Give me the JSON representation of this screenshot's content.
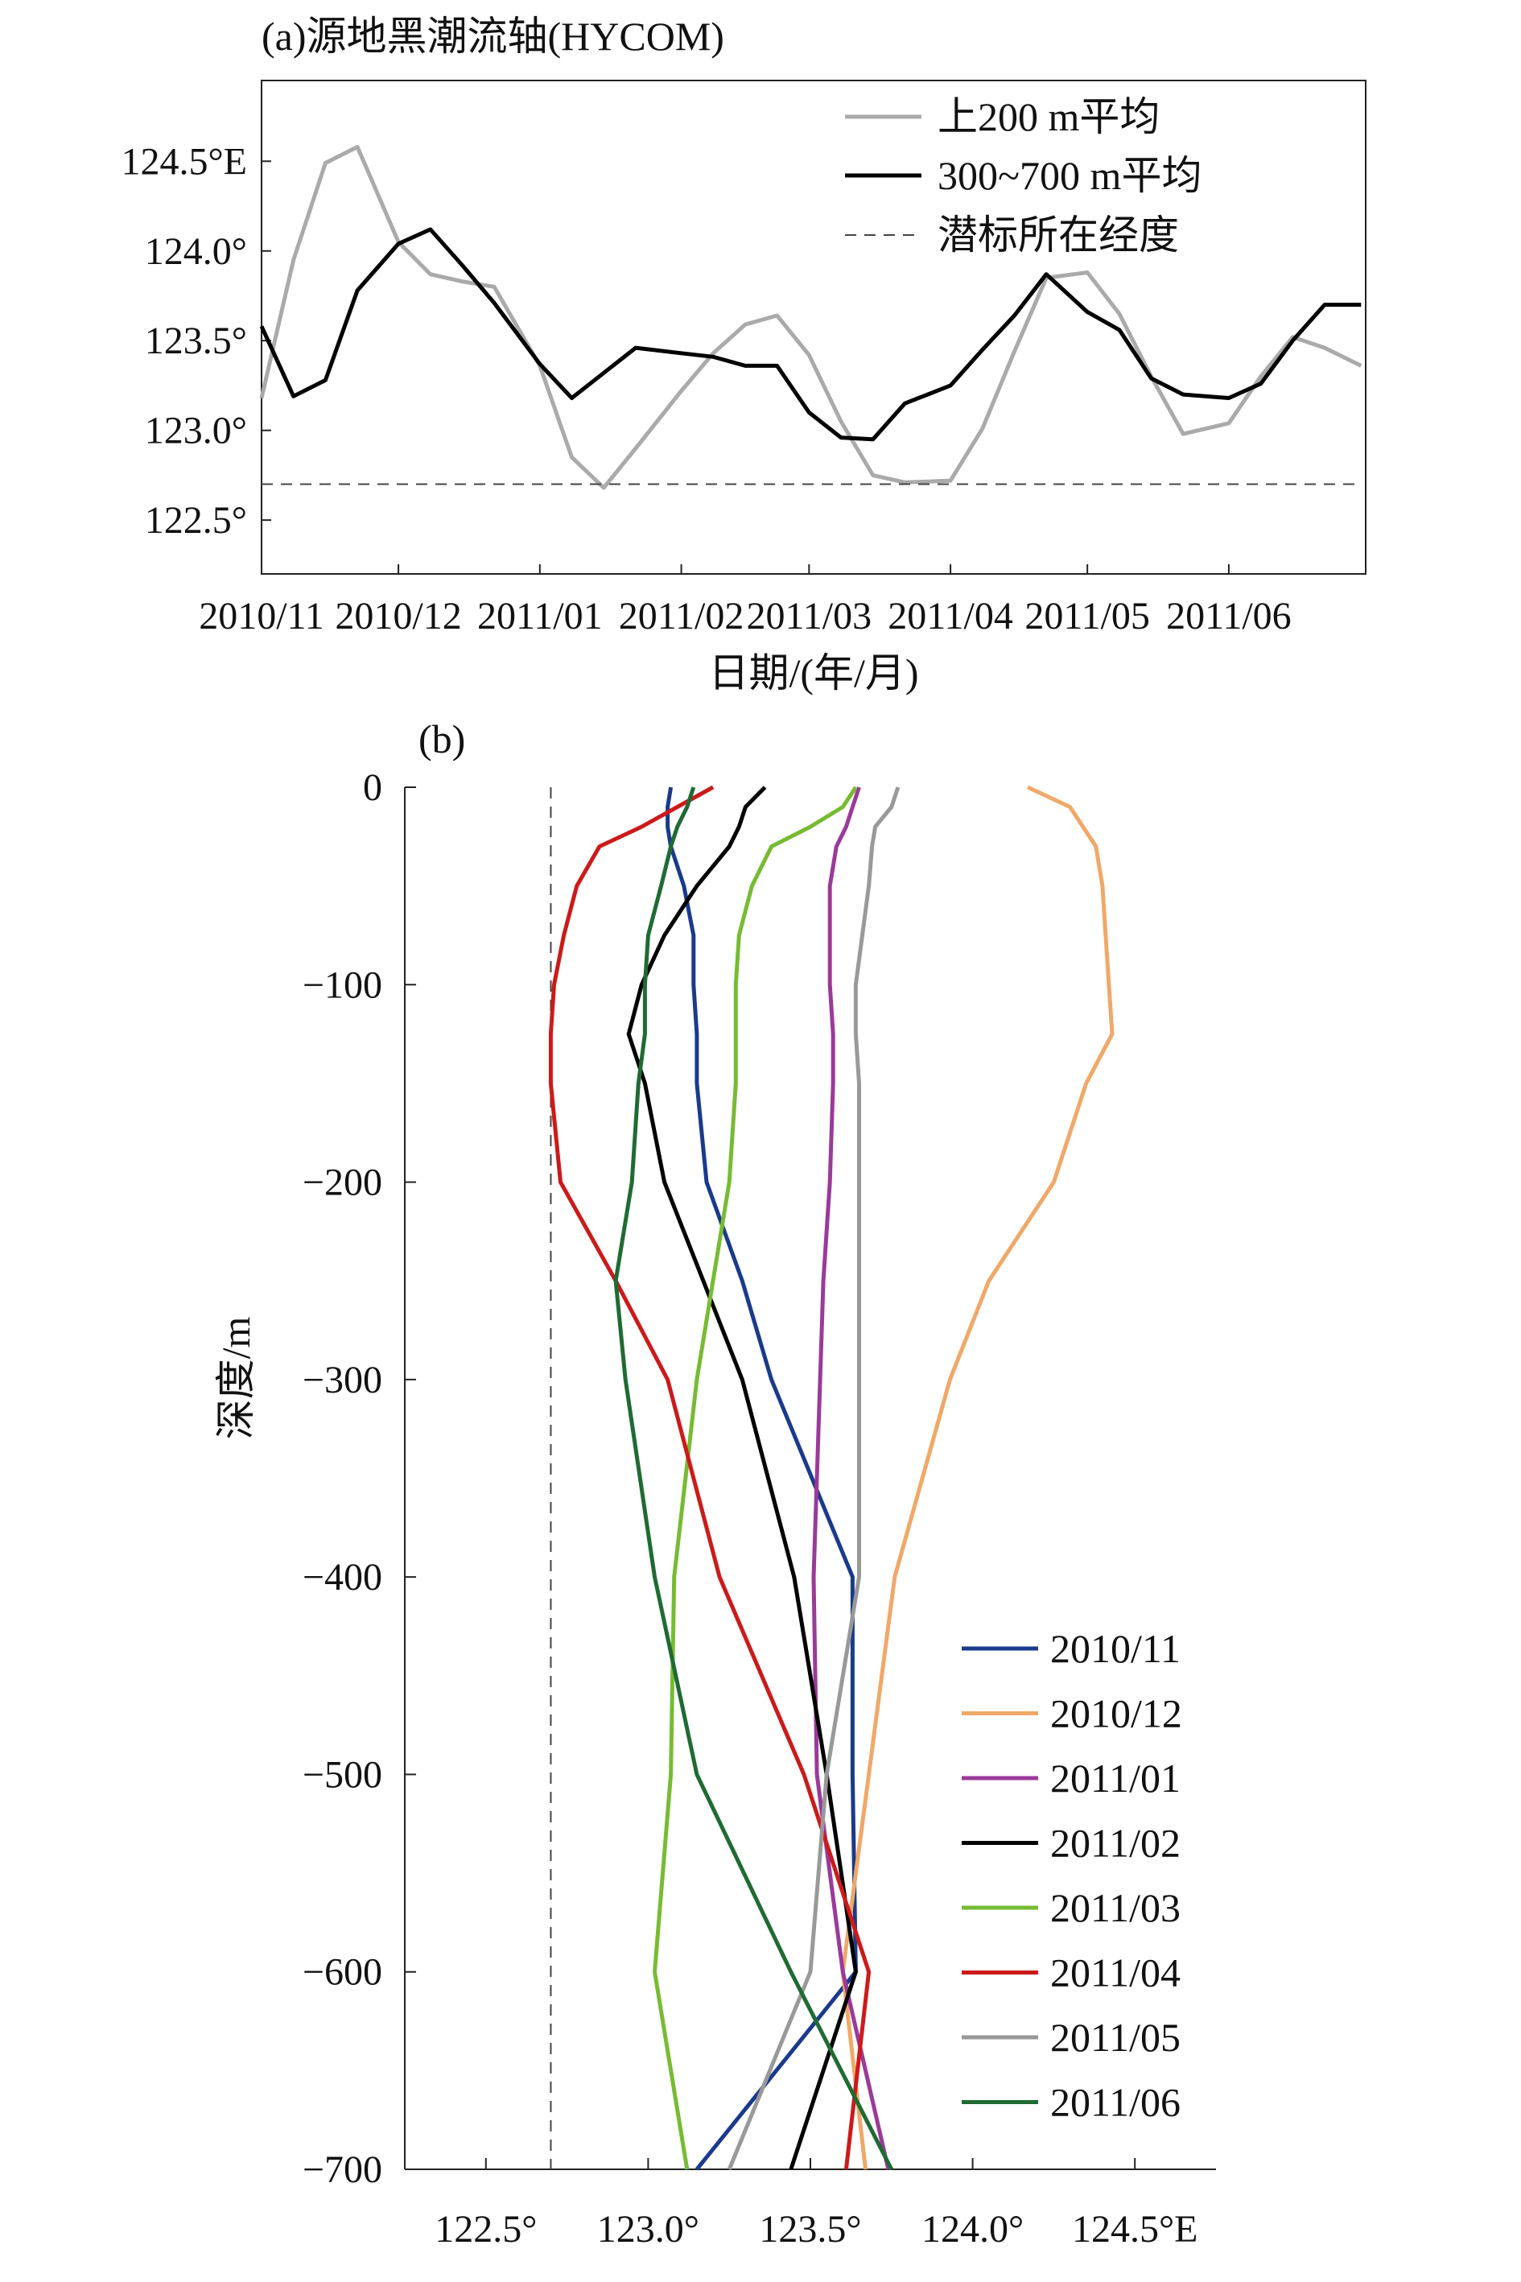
{
  "figure": {
    "panel_a_title": "(a)源地黑潮流轴(HYCOM)",
    "panel_b_title": "(b)"
  },
  "chart_data": [
    {
      "type": "line",
      "title": "(a)源地黑潮流轴(HYCOM)",
      "xlabel": "日期/(年/月)",
      "ylabel": "",
      "ylim": [
        122.2,
        124.95
      ],
      "x_ticks": [
        "2010/11",
        "2010/12",
        "2011/01",
        "2011/02",
        "2011/03",
        "2011/04",
        "2011/05",
        "2011/06"
      ],
      "y_ticks": [
        {
          "value": 124.5,
          "label": "124.5°E"
        },
        {
          "value": 124.0,
          "label": "124.0°"
        },
        {
          "value": 123.5,
          "label": "123.5°"
        },
        {
          "value": 123.0,
          "label": "123.0°"
        },
        {
          "value": 122.5,
          "label": "122.5°"
        }
      ],
      "grid": false,
      "legend_position": "top-right",
      "x": [
        "2010/11/01",
        "2010/11/08",
        "2010/11/15",
        "2010/11/22",
        "2010/12/01",
        "2010/12/08",
        "2010/12/15",
        "2010/12/22",
        "2011/01/01",
        "2011/01/08",
        "2011/01/15",
        "2011/01/22",
        "2011/02/01",
        "2011/02/08",
        "2011/02/15",
        "2011/02/22",
        "2011/03/01",
        "2011/03/08",
        "2011/03/15",
        "2011/03/22",
        "2011/04/01",
        "2011/04/08",
        "2011/04/15",
        "2011/04/22",
        "2011/05/01",
        "2011/05/08",
        "2011/05/15",
        "2011/05/22",
        "2011/06/01",
        "2011/06/08",
        "2011/06/15",
        "2011/06/22",
        "2011/06/30"
      ],
      "series": [
        {
          "name": "上200 m平均",
          "color": "#aaaaaa",
          "style": "solid",
          "values": [
            123.18,
            123.95,
            124.49,
            124.58,
            124.05,
            123.87,
            123.83,
            123.8,
            123.36,
            122.85,
            122.68,
            122.9,
            123.22,
            123.43,
            123.59,
            123.64,
            123.42,
            123.05,
            122.75,
            122.71,
            122.72,
            123.01,
            123.44,
            123.85,
            123.88,
            123.65,
            123.3,
            122.98,
            123.04,
            123.3,
            123.52,
            123.46,
            123.36
          ]
        },
        {
          "name": "300~700 m平均",
          "color": "#000000",
          "style": "solid",
          "values": [
            123.58,
            123.19,
            123.28,
            123.78,
            124.04,
            124.12,
            123.92,
            123.71,
            123.37,
            123.18,
            123.32,
            123.46,
            123.43,
            123.41,
            123.36,
            123.36,
            123.1,
            122.96,
            122.95,
            123.15,
            123.25,
            123.45,
            123.64,
            123.87,
            123.66,
            123.56,
            123.29,
            123.2,
            123.18,
            123.26,
            123.5,
            123.7,
            123.7
          ]
        },
        {
          "name": "潜标所在经度",
          "color": "#444444",
          "style": "dashed",
          "values": [
            122.7,
            122.7,
            122.7,
            122.7,
            122.7,
            122.7,
            122.7,
            122.7,
            122.7,
            122.7,
            122.7,
            122.7,
            122.7,
            122.7,
            122.7,
            122.7,
            122.7,
            122.7,
            122.7,
            122.7,
            122.7,
            122.7,
            122.7,
            122.7,
            122.7,
            122.7,
            122.7,
            122.7,
            122.7,
            122.7,
            122.7,
            122.7,
            122.7
          ]
        }
      ]
    },
    {
      "type": "line",
      "title": "(b)",
      "xlabel": "",
      "ylabel": "深度/m",
      "xlim": [
        122.25,
        124.75
      ],
      "ylim": [
        -700,
        0
      ],
      "x_ticks": [
        {
          "value": 122.5,
          "label": "122.5°"
        },
        {
          "value": 123.0,
          "label": "123.0°"
        },
        {
          "value": 123.5,
          "label": "123.5°"
        },
        {
          "value": 124.0,
          "label": "124.0°"
        },
        {
          "value": 124.5,
          "label": "124.5°E"
        }
      ],
      "y_ticks": [
        {
          "value": 0,
          "label": "0"
        },
        {
          "value": -100,
          "label": "−100"
        },
        {
          "value": -200,
          "label": "−200"
        },
        {
          "value": -300,
          "label": "−300"
        },
        {
          "value": -400,
          "label": "−400"
        },
        {
          "value": -500,
          "label": "−500"
        },
        {
          "value": -600,
          "label": "−600"
        },
        {
          "value": -700,
          "label": "−700"
        }
      ],
      "reference_longitude": 122.7,
      "grid": false,
      "legend_position": "bottom-right",
      "depth": [
        0,
        -10,
        -20,
        -30,
        -50,
        -75,
        -100,
        -125,
        -150,
        -200,
        -250,
        -300,
        -400,
        -500,
        -600,
        -700
      ],
      "series": [
        {
          "name": "2010/11",
          "color": "#1a3a8c",
          "values": [
            123.07,
            123.06,
            123.06,
            123.07,
            123.11,
            123.14,
            123.14,
            123.15,
            123.15,
            123.18,
            123.29,
            123.38,
            123.63,
            123.63,
            123.64,
            123.15
          ]
        },
        {
          "name": "2010/12",
          "color": "#f0a868",
          "values": [
            124.17,
            124.3,
            124.34,
            124.38,
            124.4,
            124.41,
            124.42,
            124.43,
            124.35,
            124.25,
            124.05,
            123.93,
            123.76,
            123.68,
            123.6,
            123.67
          ]
        },
        {
          "name": "2011/01",
          "color": "#9a3a9a",
          "values": [
            123.65,
            123.63,
            123.61,
            123.58,
            123.56,
            123.56,
            123.56,
            123.57,
            123.57,
            123.56,
            123.54,
            123.53,
            123.51,
            123.52,
            123.6,
            123.74
          ]
        },
        {
          "name": "2011/02",
          "color": "#000000",
          "values": [
            123.36,
            123.3,
            123.28,
            123.25,
            123.15,
            123.05,
            122.98,
            122.94,
            122.99,
            123.05,
            123.17,
            123.29,
            123.45,
            123.55,
            123.64,
            123.44
          ]
        },
        {
          "name": "2011/03",
          "color": "#77bb33",
          "values": [
            123.64,
            123.6,
            123.5,
            123.38,
            123.32,
            123.28,
            123.27,
            123.27,
            123.27,
            123.25,
            123.2,
            123.15,
            123.08,
            123.07,
            123.02,
            123.12
          ]
        },
        {
          "name": "2011/04",
          "color": "#cc1a1a",
          "values": [
            123.2,
            123.09,
            122.98,
            122.85,
            122.78,
            122.74,
            122.71,
            122.7,
            122.7,
            122.73,
            122.9,
            123.06,
            123.22,
            123.48,
            123.68,
            123.61
          ]
        },
        {
          "name": "2011/05",
          "color": "#999999",
          "values": [
            123.77,
            123.75,
            123.7,
            123.69,
            123.68,
            123.66,
            123.64,
            123.64,
            123.65,
            123.65,
            123.65,
            123.65,
            123.65,
            123.55,
            123.5,
            123.25
          ]
        },
        {
          "name": "2011/06",
          "color": "#1f6b33",
          "values": [
            123.14,
            123.12,
            123.09,
            123.07,
            123.04,
            123.0,
            122.99,
            122.99,
            122.97,
            122.95,
            122.9,
            122.93,
            123.02,
            123.15,
            123.44,
            123.75
          ]
        }
      ]
    }
  ]
}
